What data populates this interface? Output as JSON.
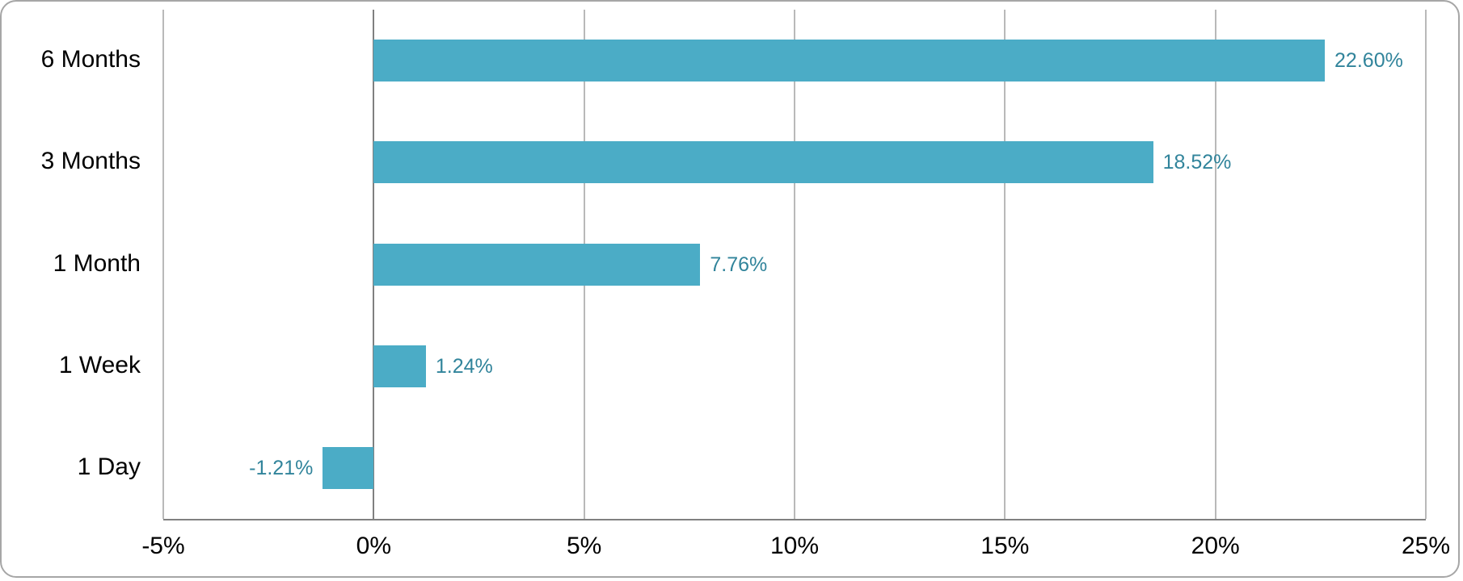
{
  "chart_data": {
    "type": "bar",
    "orientation": "horizontal",
    "title": "",
    "xlabel": "",
    "ylabel": "",
    "categories": [
      "6 Months",
      "3 Months",
      "1 Month",
      "1 Week",
      "1 Day"
    ],
    "values": [
      22.6,
      18.52,
      7.76,
      1.24,
      -1.21
    ],
    "data_labels": [
      "22.60%",
      "18.52%",
      "7.76%",
      "1.24%",
      "-1.21%"
    ],
    "xlim": [
      -5,
      25
    ],
    "x_ticks": [
      -5,
      0,
      5,
      10,
      15,
      20,
      25
    ],
    "x_tick_labels": [
      "-5%",
      "0%",
      "5%",
      "10%",
      "15%",
      "20%",
      "25%"
    ],
    "grid": "vertical-only",
    "legend": "none",
    "colors": {
      "bar": "#4BACC6",
      "data_label": "#31849B",
      "axis_text": "#000000",
      "gridline": "#B9B9B9",
      "zero_axis_line": "#808080",
      "card_border": "#A6A6A6",
      "background": "#FFFFFF"
    }
  }
}
